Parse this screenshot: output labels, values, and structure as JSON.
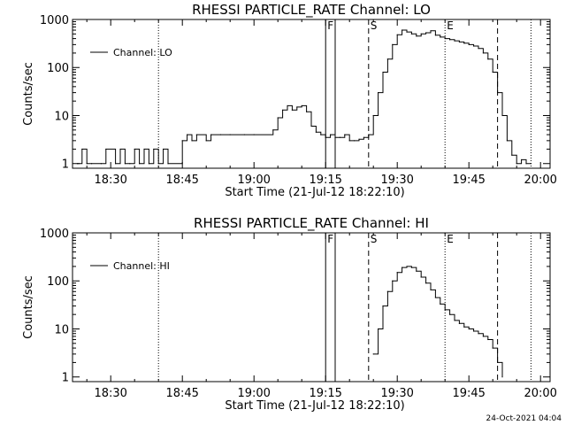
{
  "footer": {
    "timestamp": "24-Oct-2021 04:04"
  },
  "chart_data": [
    {
      "type": "line",
      "title": "RHESSI PARTICLE_RATE Channel: LO",
      "xlabel": "Start Time (21-Jul-12 18:22:10)",
      "ylabel": "Counts/sec",
      "yscale": "log",
      "ylim": [
        0.8,
        1000
      ],
      "xlim": [
        "18:22",
        "20:02"
      ],
      "x_ticks": [
        "18:30",
        "18:45",
        "19:00",
        "19:15",
        "19:30",
        "19:45",
        "20:00"
      ],
      "y_ticks": [
        "1",
        "10",
        "100",
        "1000"
      ],
      "legend": {
        "position": "top-left",
        "entries": [
          "Channel: LO"
        ]
      },
      "markers": [
        {
          "label": "F",
          "style": "solid",
          "time": "19:15"
        },
        {
          "label": "",
          "style": "solid",
          "time": "19:17"
        },
        {
          "label": "S",
          "style": "dashed",
          "time": "19:24"
        },
        {
          "label": "E",
          "style": "dotted",
          "time": "19:40"
        },
        {
          "label": "",
          "style": "dotted",
          "time": "18:40"
        },
        {
          "label": "",
          "style": "dashed",
          "time": "19:51"
        },
        {
          "label": "",
          "style": "dotted",
          "time": "19:58"
        }
      ],
      "series": [
        {
          "name": "Channel: LO",
          "x": [
            "18:23",
            "18:24",
            "18:25",
            "18:26",
            "18:28",
            "18:29",
            "18:31",
            "18:32",
            "18:33",
            "18:34",
            "18:35",
            "18:36",
            "18:37",
            "18:38",
            "18:39",
            "18:40",
            "18:41",
            "18:42",
            "18:45",
            "18:46",
            "18:47",
            "18:48",
            "18:50",
            "18:51",
            "18:53",
            "18:55",
            "18:58",
            "19:00",
            "19:04",
            "19:05",
            "19:06",
            "19:07",
            "19:08",
            "19:09",
            "19:10",
            "19:11",
            "19:12",
            "19:13",
            "19:14",
            "19:15",
            "19:16",
            "19:17",
            "19:18",
            "19:19",
            "19:20",
            "19:21",
            "19:22",
            "19:23",
            "19:24",
            "19:25",
            "19:26",
            "19:27",
            "19:28",
            "19:29",
            "19:30",
            "19:31",
            "19:32",
            "19:33",
            "19:34",
            "19:35",
            "19:36",
            "19:37",
            "19:38",
            "19:39",
            "19:40",
            "19:41",
            "19:42",
            "19:43",
            "19:44",
            "19:45",
            "19:46",
            "19:47",
            "19:48",
            "19:49",
            "19:50",
            "19:51",
            "19:52",
            "19:53",
            "19:54",
            "19:55",
            "19:56",
            "19:57",
            "19:58"
          ],
          "y": [
            1,
            2,
            1,
            1,
            1,
            2,
            1,
            2,
            1,
            1,
            2,
            1,
            2,
            1,
            2,
            1,
            2,
            1,
            3,
            4,
            3,
            4,
            3,
            4,
            4,
            4,
            4,
            4,
            5,
            9,
            13,
            16,
            13,
            15,
            16,
            12,
            6,
            4.5,
            4,
            3.5,
            4,
            3.5,
            3.5,
            4,
            3,
            3,
            3.2,
            3.5,
            4,
            10,
            30,
            80,
            150,
            300,
            480,
            600,
            550,
            500,
            450,
            500,
            530,
            580,
            470,
            430,
            400,
            380,
            360,
            340,
            320,
            300,
            280,
            250,
            200,
            150,
            80,
            30,
            10,
            3,
            1.5,
            1,
            1.2,
            1,
            1
          ]
        }
      ]
    },
    {
      "type": "line",
      "title": "RHESSI PARTICLE_RATE Channel: HI",
      "xlabel": "Start Time (21-Jul-12 18:22:10)",
      "ylabel": "Counts/sec",
      "yscale": "log",
      "ylim": [
        0.8,
        1000
      ],
      "xlim": [
        "18:22",
        "20:02"
      ],
      "x_ticks": [
        "18:30",
        "18:45",
        "19:00",
        "19:15",
        "19:30",
        "19:45",
        "20:00"
      ],
      "y_ticks": [
        "1",
        "10",
        "100",
        "1000"
      ],
      "legend": {
        "position": "top-left",
        "entries": [
          "Channel: HI"
        ]
      },
      "markers": [
        {
          "label": "F",
          "style": "solid",
          "time": "19:15"
        },
        {
          "label": "",
          "style": "solid",
          "time": "19:17"
        },
        {
          "label": "S",
          "style": "dashed",
          "time": "19:24"
        },
        {
          "label": "E",
          "style": "dotted",
          "time": "19:40"
        },
        {
          "label": "",
          "style": "dotted",
          "time": "18:40"
        },
        {
          "label": "",
          "style": "dashed",
          "time": "19:51"
        },
        {
          "label": "",
          "style": "dotted",
          "time": "19:58"
        }
      ],
      "series": [
        {
          "name": "Channel: HI",
          "x": [
            "19:25",
            "19:26",
            "19:27",
            "19:28",
            "19:29",
            "19:30",
            "19:31",
            "19:32",
            "19:33",
            "19:34",
            "19:35",
            "19:36",
            "19:37",
            "19:38",
            "19:39",
            "19:40",
            "19:41",
            "19:42",
            "19:43",
            "19:44",
            "19:45",
            "19:46",
            "19:47",
            "19:48",
            "19:49",
            "19:50",
            "19:51",
            "19:52"
          ],
          "y": [
            3,
            10,
            30,
            60,
            100,
            150,
            190,
            200,
            190,
            160,
            120,
            90,
            65,
            45,
            33,
            25,
            20,
            15,
            13,
            11,
            10,
            9,
            8,
            7,
            6,
            4,
            2,
            1
          ]
        }
      ]
    }
  ]
}
